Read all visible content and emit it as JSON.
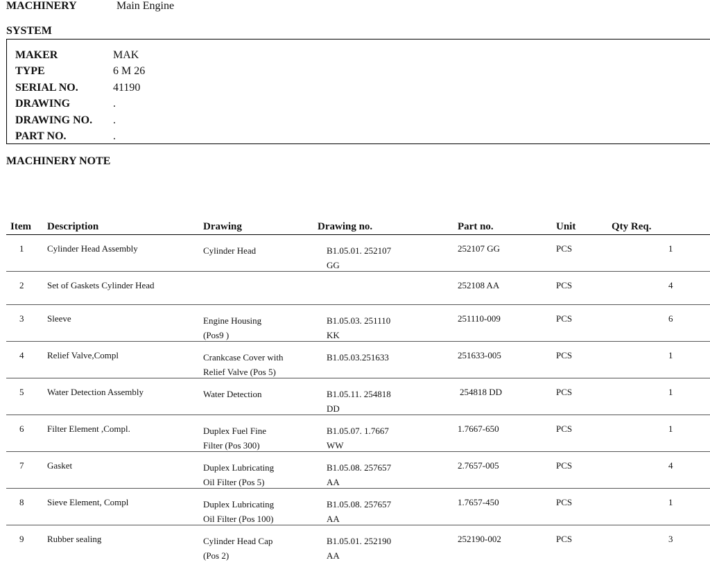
{
  "header": {
    "machinery_label": "MACHINERY",
    "machinery_value": "Main Engine",
    "system_label": "SYSTEM"
  },
  "specs": [
    {
      "key": "MAKER",
      "value": "MAK"
    },
    {
      "key": "TYPE",
      "value": "6 M 26"
    },
    {
      "key": "SERIAL NO.",
      "value": "41190"
    },
    {
      "key": "DRAWING",
      "value": "."
    },
    {
      "key": "DRAWING NO.",
      "value": "."
    },
    {
      "key": "PART NO.",
      "value": "."
    }
  ],
  "machinery_note_label": "MACHINERY NOTE",
  "table": {
    "columns": [
      "Item",
      "Description",
      "Drawing",
      "Drawing no.",
      "Part no.",
      "Unit",
      "Qty Req."
    ],
    "rows": [
      {
        "item": "1",
        "description": "Cylinder Head Assembly",
        "drawing": [
          "Cylinder Head"
        ],
        "drawing_no": [
          "B1.05.01. 252107",
          "GG"
        ],
        "part_no": "252107 GG",
        "unit": "PCS",
        "qty": "1"
      },
      {
        "item": "2",
        "description": "Set of Gaskets Cylinder Head",
        "drawing": [],
        "drawing_no": [],
        "part_no": "252108 AA",
        "unit": "PCS",
        "qty": "4"
      },
      {
        "item": "3",
        "description": "Sleeve",
        "drawing": [
          "Engine Housing",
          "(Pos9 )"
        ],
        "drawing_no": [
          "B1.05.03. 251110",
          "KK"
        ],
        "part_no": "251110-009",
        "unit": "PCS",
        "qty": "6"
      },
      {
        "item": "4",
        "description": "Relief Valve,Compl",
        "drawing": [
          "Crankcase Cover with",
          "Relief Valve (Pos 5)"
        ],
        "drawing_no": [
          "B1.05.03.251633"
        ],
        "part_no": "251633-005",
        "unit": "PCS",
        "qty": "1"
      },
      {
        "item": "5",
        "description": "Water Detection Assembly",
        "drawing": [
          "Water Detection"
        ],
        "drawing_no": [
          "B1.05.11. 254818",
          "DD"
        ],
        "part_no": "254818 DD",
        "unit": "PCS",
        "qty": "1"
      },
      {
        "item": "6",
        "description": "Filter Element ,Compl.",
        "drawing": [
          "Duplex Fuel Fine",
          "Filter (Pos 300)"
        ],
        "drawing_no": [
          "B1.05.07. 1.7667",
          "WW"
        ],
        "part_no": "1.7667-650",
        "unit": "PCS",
        "qty": "1"
      },
      {
        "item": "7",
        "description": "Gasket",
        "drawing": [
          "Duplex Lubricating",
          "Oil Filter (Pos 5)"
        ],
        "drawing_no": [
          "B1.05.08. 257657",
          "AA"
        ],
        "part_no": "2.7657-005",
        "unit": "PCS",
        "qty": "4"
      },
      {
        "item": "8",
        "description": "Sieve Element, Compl",
        "drawing": [
          "Duplex Lubricating",
          "Oil Filter (Pos 100)"
        ],
        "drawing_no": [
          "B1.05.08. 257657",
          "AA"
        ],
        "part_no": "1.7657-450",
        "unit": "PCS",
        "qty": "1"
      },
      {
        "item": "9",
        "description": "Rubber sealing",
        "drawing": [
          "Cylinder Head Cap",
          "(Pos 2)"
        ],
        "drawing_no": [
          "B1.05.01. 252190",
          "AA"
        ],
        "part_no": "252190-002",
        "unit": "PCS",
        "qty": "3"
      }
    ]
  }
}
